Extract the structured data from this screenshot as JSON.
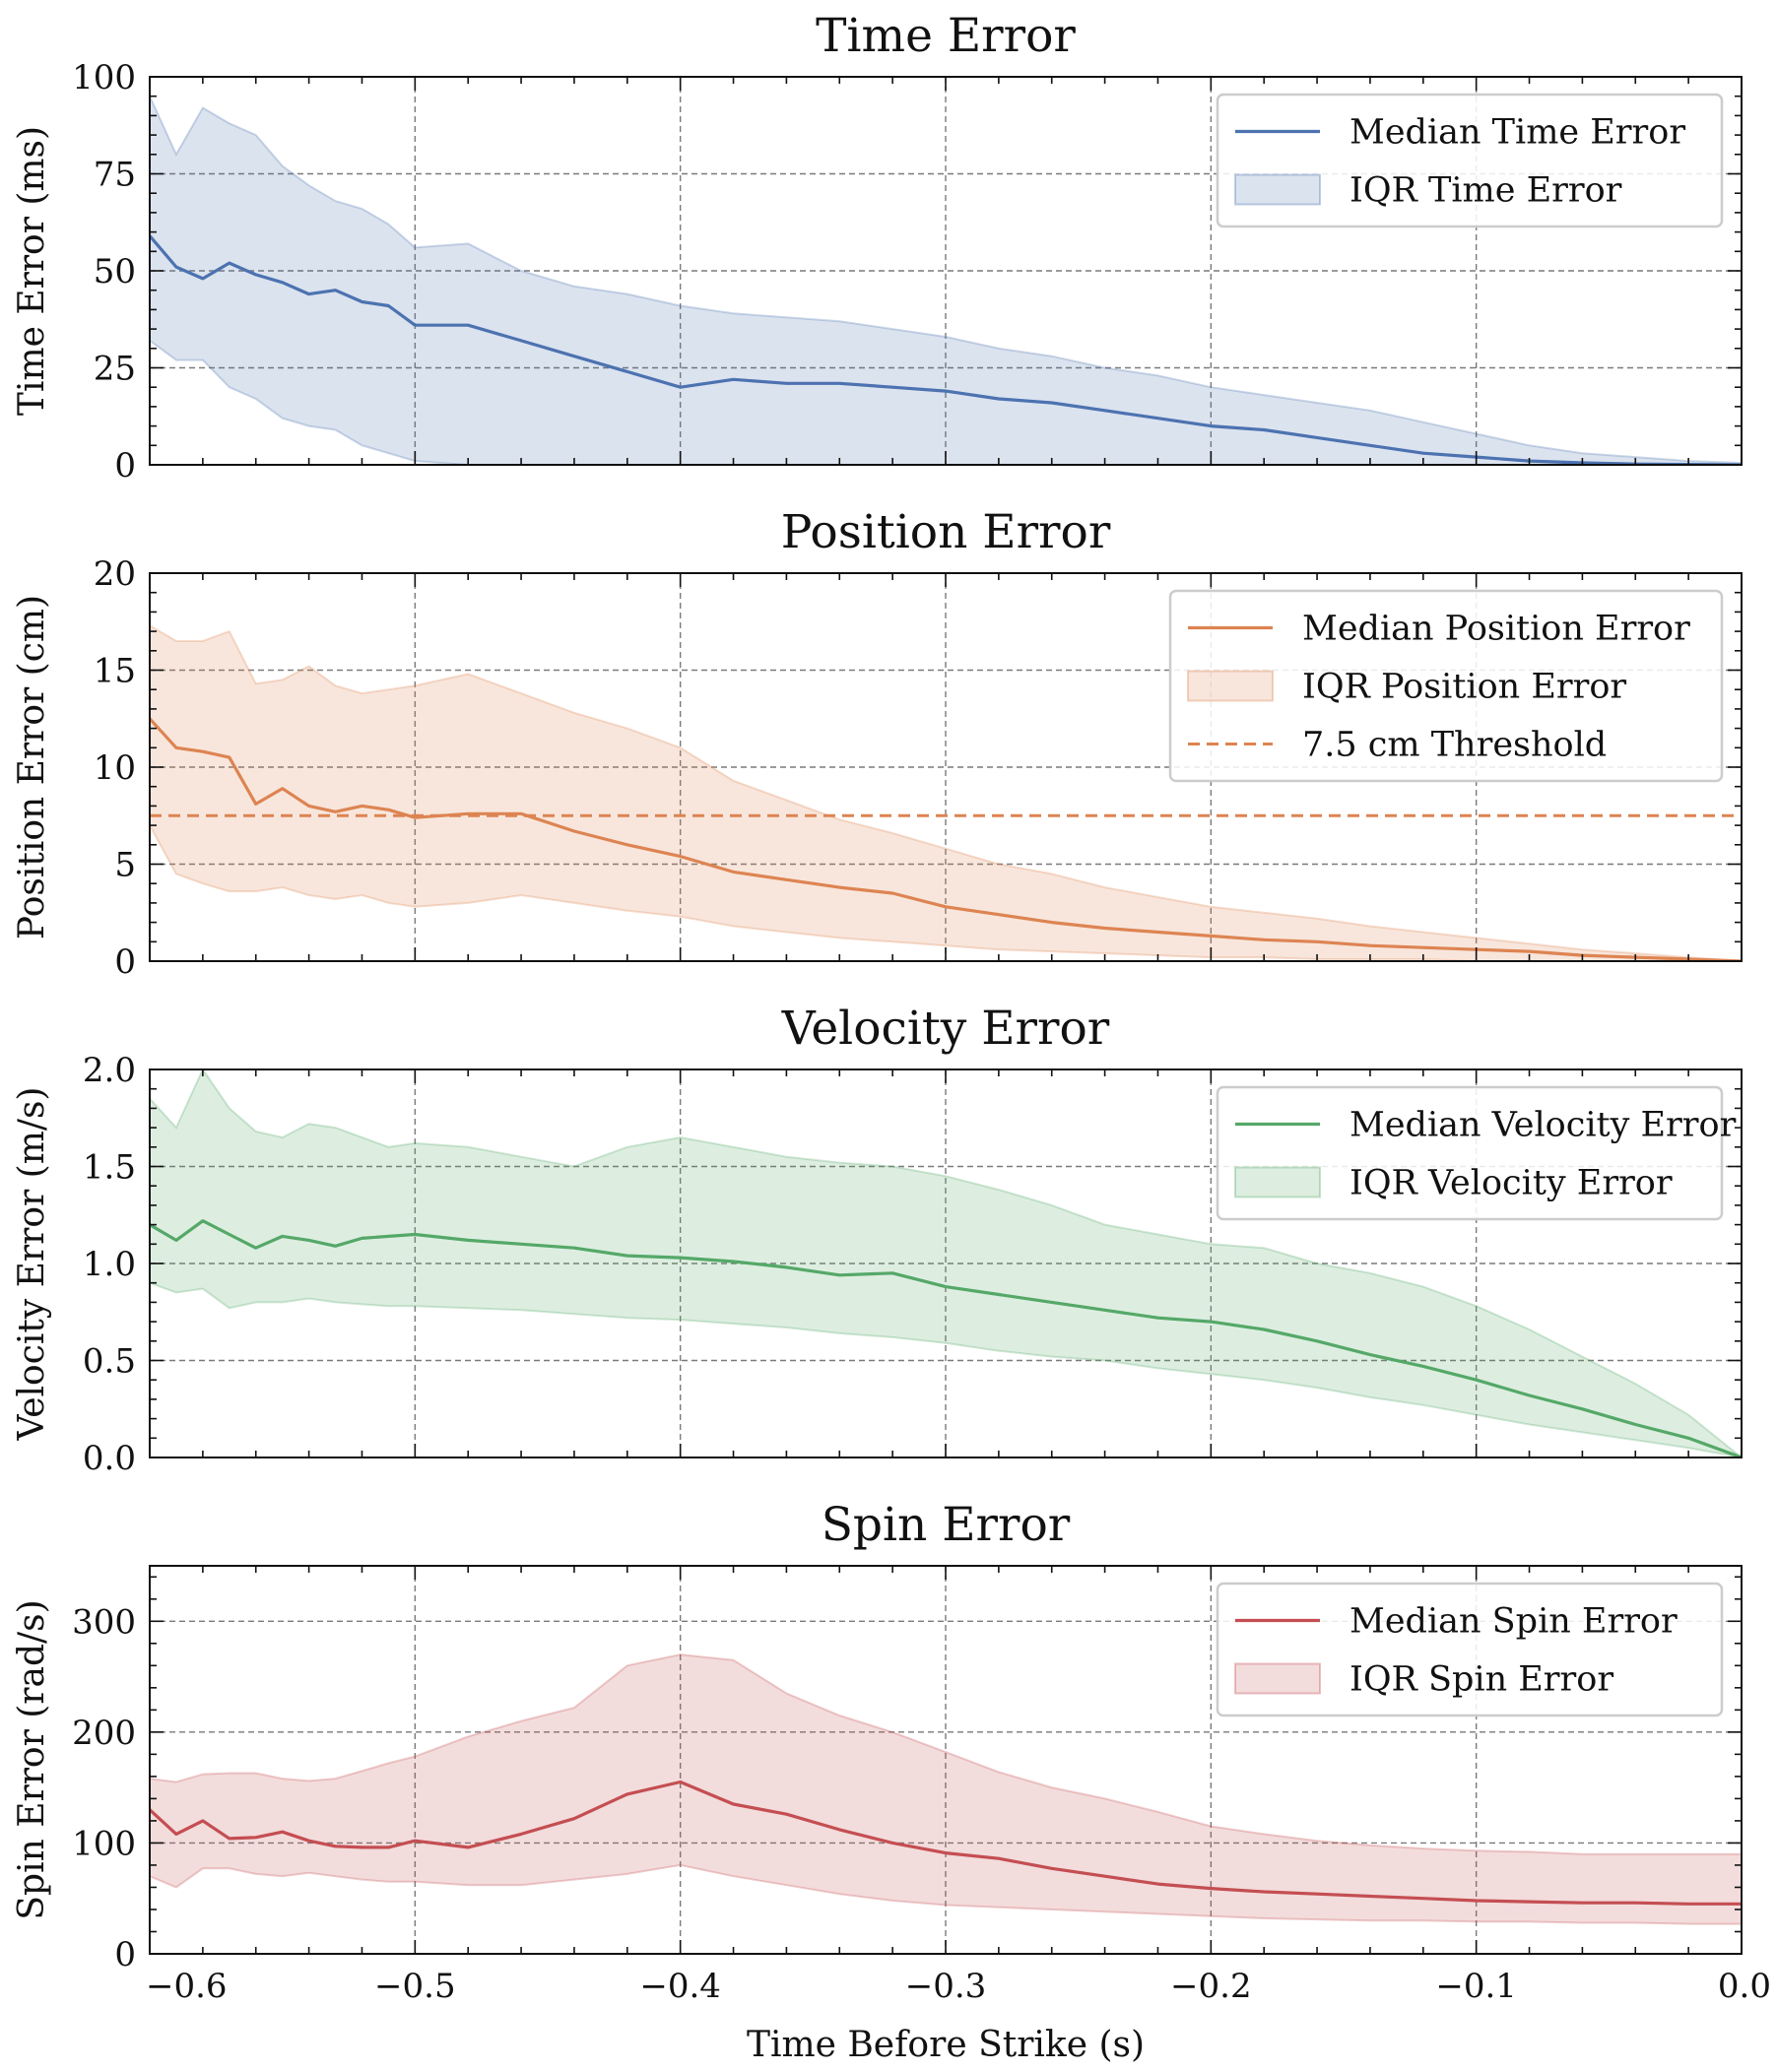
{
  "figure": {
    "xlabel": "Time Before Strike (s)",
    "xlim": [
      -0.6,
      0.0
    ],
    "xticks": [
      -0.6,
      -0.5,
      -0.4,
      -0.3,
      -0.2,
      -0.1,
      0.0
    ],
    "xtick_labels": [
      "−0.6",
      "−0.5",
      "−0.4",
      "−0.3",
      "−0.2",
      "−0.1",
      "0.0"
    ],
    "grid": "dashed"
  },
  "chart_data": [
    {
      "type": "line",
      "title": "Time Error",
      "xlabel": "Time Before Strike (s)",
      "ylabel": "Time Error (ms)",
      "ylim": [
        0,
        100
      ],
      "yticks": [
        0,
        25,
        50,
        75,
        100
      ],
      "ytick_labels": [
        "0",
        "25",
        "50",
        "75",
        "100"
      ],
      "color": "#4c72b0",
      "legend_position": "top-right",
      "legend": [
        "Median Time Error",
        "IQR Time Error"
      ],
      "x": [
        -0.6,
        -0.59,
        -0.58,
        -0.57,
        -0.56,
        -0.55,
        -0.54,
        -0.53,
        -0.52,
        -0.51,
        -0.5,
        -0.48,
        -0.46,
        -0.44,
        -0.42,
        -0.4,
        -0.38,
        -0.36,
        -0.34,
        -0.32,
        -0.3,
        -0.28,
        -0.26,
        -0.24,
        -0.22,
        -0.2,
        -0.18,
        -0.16,
        -0.14,
        -0.12,
        -0.1,
        -0.08,
        -0.06,
        -0.04,
        -0.02,
        0.0
      ],
      "series": [
        {
          "name": "Median Time Error",
          "kind": "line",
          "values": [
            59,
            51,
            48,
            52,
            49,
            47,
            44,
            45,
            42,
            41,
            36,
            36,
            32,
            28,
            24,
            20,
            22,
            21,
            21,
            20,
            19,
            17,
            16,
            14,
            12,
            10,
            9,
            7,
            5,
            3,
            2,
            1,
            0.5,
            0.2,
            0.1,
            0
          ]
        },
        {
          "name": "IQR Time Error (upper)",
          "kind": "band-upper",
          "values": [
            95,
            80,
            92,
            88,
            85,
            77,
            72,
            68,
            66,
            62,
            56,
            57,
            50,
            46,
            44,
            41,
            39,
            38,
            37,
            35,
            33,
            30,
            28,
            25,
            23,
            20,
            18,
            16,
            14,
            11,
            8,
            5,
            3,
            2,
            1,
            0.5
          ]
        },
        {
          "name": "IQR Time Error (lower)",
          "kind": "band-lower",
          "values": [
            32,
            27,
            27,
            20,
            17,
            12,
            10,
            9,
            5,
            3,
            1,
            0,
            0,
            0,
            0,
            0,
            0,
            0,
            0,
            0,
            0,
            0,
            0,
            0,
            0,
            0,
            0,
            0,
            0,
            0,
            0,
            0,
            0,
            0,
            0,
            0
          ]
        }
      ]
    },
    {
      "type": "line",
      "title": "Position Error",
      "xlabel": "Time Before Strike (s)",
      "ylabel": "Position Error (cm)",
      "ylim": [
        0,
        20
      ],
      "yticks": [
        0,
        5,
        10,
        15,
        20
      ],
      "ytick_labels": [
        "0",
        "5",
        "10",
        "15",
        "20"
      ],
      "color": "#dd8452",
      "legend_position": "top-right",
      "legend": [
        "Median Position Error",
        "IQR Position Error",
        "7.5 cm Threshold"
      ],
      "threshold": 7.5,
      "x": [
        -0.6,
        -0.59,
        -0.58,
        -0.57,
        -0.56,
        -0.55,
        -0.54,
        -0.53,
        -0.52,
        -0.51,
        -0.5,
        -0.48,
        -0.46,
        -0.44,
        -0.42,
        -0.4,
        -0.38,
        -0.36,
        -0.34,
        -0.32,
        -0.3,
        -0.28,
        -0.26,
        -0.24,
        -0.22,
        -0.2,
        -0.18,
        -0.16,
        -0.14,
        -0.12,
        -0.1,
        -0.08,
        -0.06,
        -0.04,
        -0.02,
        0.0
      ],
      "series": [
        {
          "name": "Median Position Error",
          "kind": "line",
          "values": [
            12.5,
            11,
            10.8,
            10.5,
            8.1,
            8.9,
            8,
            7.7,
            8,
            7.8,
            7.4,
            7.6,
            7.6,
            6.7,
            6,
            5.4,
            4.6,
            4.2,
            3.8,
            3.5,
            2.8,
            2.4,
            2,
            1.7,
            1.5,
            1.3,
            1.1,
            1,
            0.8,
            0.7,
            0.6,
            0.5,
            0.3,
            0.2,
            0.1,
            0
          ]
        },
        {
          "name": "IQR Position Error (upper)",
          "kind": "band-upper",
          "values": [
            17.3,
            16.5,
            16.5,
            17,
            14.3,
            14.5,
            15.2,
            14.2,
            13.8,
            14,
            14.2,
            14.8,
            13.8,
            12.8,
            12,
            11,
            9.3,
            8.3,
            7.3,
            6.6,
            5.8,
            5,
            4.5,
            3.8,
            3.3,
            2.8,
            2.5,
            2.2,
            1.8,
            1.5,
            1.2,
            0.9,
            0.6,
            0.4,
            0.2,
            0
          ]
        },
        {
          "name": "IQR Position Error (lower)",
          "kind": "band-lower",
          "values": [
            7,
            4.5,
            4,
            3.6,
            3.6,
            3.8,
            3.4,
            3.2,
            3.4,
            3,
            2.8,
            3,
            3.4,
            3,
            2.6,
            2.3,
            1.8,
            1.5,
            1.2,
            1,
            0.8,
            0.6,
            0.5,
            0.4,
            0.3,
            0.2,
            0.2,
            0.1,
            0.1,
            0.1,
            0,
            0,
            0,
            0,
            0,
            0
          ]
        }
      ]
    },
    {
      "type": "line",
      "title": "Velocity Error",
      "xlabel": "Time Before Strike (s)",
      "ylabel": "Velocity Error (m/s)",
      "ylim": [
        0,
        2
      ],
      "yticks": [
        0,
        0.5,
        1,
        1.5,
        2
      ],
      "ytick_labels": [
        "0.0",
        "0.5",
        "1.0",
        "1.5",
        "2.0"
      ],
      "color": "#55a868",
      "legend_position": "top-right",
      "legend": [
        "Median Velocity Error",
        "IQR Velocity Error"
      ],
      "x": [
        -0.6,
        -0.59,
        -0.58,
        -0.57,
        -0.56,
        -0.55,
        -0.54,
        -0.53,
        -0.52,
        -0.51,
        -0.5,
        -0.48,
        -0.46,
        -0.44,
        -0.42,
        -0.4,
        -0.38,
        -0.36,
        -0.34,
        -0.32,
        -0.3,
        -0.28,
        -0.26,
        -0.24,
        -0.22,
        -0.2,
        -0.18,
        -0.16,
        -0.14,
        -0.12,
        -0.1,
        -0.08,
        -0.06,
        -0.04,
        -0.02,
        0.0
      ],
      "series": [
        {
          "name": "Median Velocity Error",
          "kind": "line",
          "values": [
            1.2,
            1.12,
            1.22,
            1.15,
            1.08,
            1.14,
            1.12,
            1.09,
            1.13,
            1.14,
            1.15,
            1.12,
            1.1,
            1.08,
            1.04,
            1.03,
            1.01,
            0.98,
            0.94,
            0.95,
            0.88,
            0.84,
            0.8,
            0.76,
            0.72,
            0.7,
            0.66,
            0.6,
            0.53,
            0.47,
            0.4,
            0.32,
            0.25,
            0.17,
            0.1,
            0
          ]
        },
        {
          "name": "IQR Velocity Error (upper)",
          "kind": "band-upper",
          "values": [
            1.85,
            1.7,
            2.0,
            1.8,
            1.68,
            1.65,
            1.72,
            1.7,
            1.65,
            1.6,
            1.62,
            1.6,
            1.55,
            1.5,
            1.6,
            1.65,
            1.6,
            1.55,
            1.52,
            1.5,
            1.45,
            1.38,
            1.3,
            1.2,
            1.15,
            1.1,
            1.08,
            1.0,
            0.95,
            0.88,
            0.78,
            0.66,
            0.52,
            0.38,
            0.22,
            0
          ]
        },
        {
          "name": "IQR Velocity Error (lower)",
          "kind": "band-lower",
          "values": [
            0.9,
            0.85,
            0.87,
            0.77,
            0.8,
            0.8,
            0.82,
            0.8,
            0.79,
            0.78,
            0.78,
            0.77,
            0.76,
            0.74,
            0.72,
            0.71,
            0.69,
            0.67,
            0.64,
            0.62,
            0.59,
            0.55,
            0.52,
            0.5,
            0.46,
            0.43,
            0.4,
            0.36,
            0.31,
            0.27,
            0.22,
            0.17,
            0.13,
            0.09,
            0.05,
            0
          ]
        }
      ]
    },
    {
      "type": "line",
      "title": "Spin Error",
      "xlabel": "Time Before Strike (s)",
      "ylabel": "Spin Error (rad/s)",
      "ylim": [
        0,
        350
      ],
      "yticks": [
        0,
        100,
        200,
        300
      ],
      "ytick_labels": [
        "0",
        "100",
        "200",
        "300"
      ],
      "color": "#c44e52",
      "legend_position": "top-right",
      "legend": [
        "Median Spin Error",
        "IQR Spin Error"
      ],
      "x": [
        -0.6,
        -0.59,
        -0.58,
        -0.57,
        -0.56,
        -0.55,
        -0.54,
        -0.53,
        -0.52,
        -0.51,
        -0.5,
        -0.48,
        -0.46,
        -0.44,
        -0.42,
        -0.4,
        -0.38,
        -0.36,
        -0.34,
        -0.32,
        -0.3,
        -0.28,
        -0.26,
        -0.24,
        -0.22,
        -0.2,
        -0.18,
        -0.16,
        -0.14,
        -0.12,
        -0.1,
        -0.08,
        -0.06,
        -0.04,
        -0.02,
        0.0
      ],
      "series": [
        {
          "name": "Median Spin Error",
          "kind": "line",
          "values": [
            130,
            108,
            120,
            104,
            105,
            110,
            102,
            97,
            96,
            96,
            102,
            96,
            108,
            122,
            144,
            155,
            135,
            126,
            112,
            100,
            91,
            86,
            77,
            70,
            63,
            59,
            56,
            54,
            52,
            50,
            48,
            47,
            46,
            46,
            45,
            45
          ]
        },
        {
          "name": "IQR Spin Error (upper)",
          "kind": "band-upper",
          "values": [
            158,
            155,
            162,
            163,
            163,
            158,
            156,
            158,
            165,
            172,
            178,
            196,
            210,
            222,
            260,
            270,
            265,
            235,
            215,
            200,
            182,
            164,
            150,
            140,
            128,
            115,
            108,
            102,
            98,
            95,
            93,
            92,
            90,
            90,
            90,
            90
          ]
        },
        {
          "name": "IQR Spin Error (lower)",
          "kind": "band-lower",
          "values": [
            70,
            60,
            77,
            77,
            72,
            70,
            73,
            70,
            67,
            65,
            65,
            62,
            62,
            67,
            72,
            80,
            70,
            62,
            54,
            48,
            44,
            42,
            40,
            38,
            36,
            34,
            32,
            31,
            30,
            30,
            29,
            29,
            28,
            28,
            27,
            27
          ]
        }
      ]
    }
  ]
}
